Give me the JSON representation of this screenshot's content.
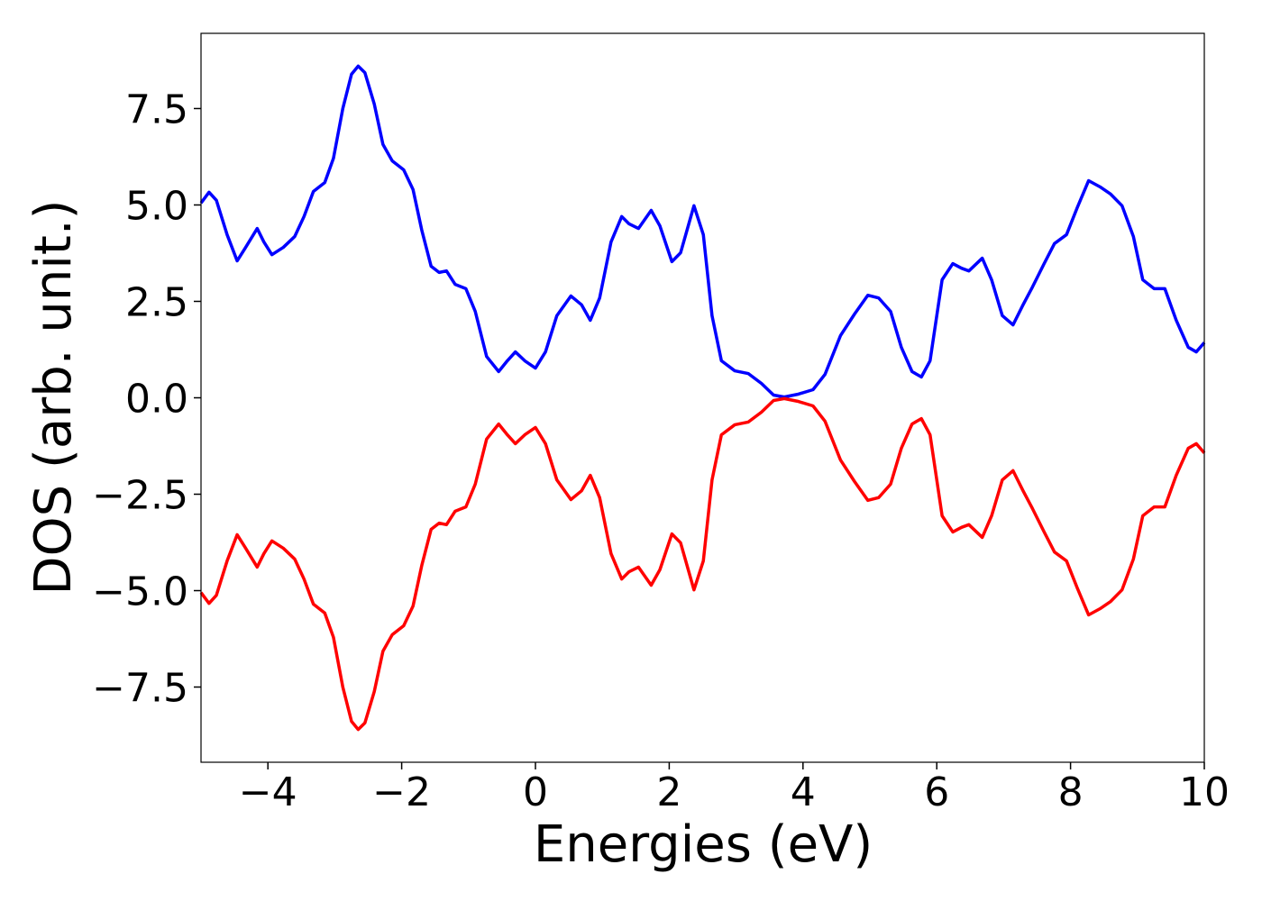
{
  "chart_data": {
    "type": "line",
    "x_label": "Energies (eV)",
    "y_label": "DOS (arb. unit.)",
    "x": [
      -5,
      -4.88,
      -4.77,
      -4.61,
      -4.46,
      -4.34,
      -4.16,
      -4.06,
      -3.94,
      -3.77,
      -3.6,
      -3.46,
      -3.32,
      -3.15,
      -3.02,
      -2.88,
      -2.75,
      -2.65,
      -2.55,
      -2.41,
      -2.28,
      -2.14,
      -1.97,
      -1.83,
      -1.7,
      -1.56,
      -1.44,
      -1.33,
      -1.2,
      -1.04,
      -0.9,
      -0.73,
      -0.55,
      -0.42,
      -0.3,
      -0.16,
      0,
      0.15,
      0.32,
      0.53,
      0.69,
      0.82,
      0.96,
      1.13,
      1.29,
      1.4,
      1.54,
      1.73,
      1.86,
      2.04,
      2.17,
      2.37,
      2.51,
      2.64,
      2.78,
      2.98,
      3.18,
      3.38,
      3.56,
      3.72,
      3.92,
      4.15,
      4.33,
      4.56,
      4.77,
      4.97,
      5.13,
      5.31,
      5.47,
      5.63,
      5.77,
      5.9,
      6.08,
      6.24,
      6.37,
      6.48,
      6.68,
      6.82,
      6.98,
      7.14,
      7.29,
      7.43,
      7.6,
      7.76,
      7.94,
      8.1,
      8.27,
      8.44,
      8.6,
      8.77,
      8.94,
      9.08,
      9.25,
      9.41,
      9.58,
      9.76,
      9.88,
      10
    ],
    "series": [
      {
        "color": "#0000ff",
        "values": [
          5.05,
          5.33,
          5.12,
          4.23,
          3.55,
          3.88,
          4.39,
          4.04,
          3.71,
          3.9,
          4.18,
          4.7,
          5.35,
          5.58,
          6.21,
          7.5,
          8.39,
          8.6,
          8.43,
          7.62,
          6.57,
          6.14,
          5.91,
          5.4,
          4.35,
          3.41,
          3.25,
          3.29,
          2.94,
          2.83,
          2.24,
          1.07,
          0.68,
          0.96,
          1.19,
          0.96,
          0.77,
          1.19,
          2.13,
          2.64,
          2.41,
          2.01,
          2.59,
          4.04,
          4.7,
          4.51,
          4.39,
          4.86,
          4.46,
          3.53,
          3.76,
          4.98,
          4.23,
          2.13,
          0.96,
          0.7,
          0.63,
          0.37,
          0.07,
          0.02,
          0.09,
          0.21,
          0.61,
          1.61,
          2.17,
          2.66,
          2.59,
          2.24,
          1.31,
          0.68,
          0.54,
          0.96,
          3.06,
          3.48,
          3.36,
          3.29,
          3.62,
          3.06,
          2.13,
          1.89,
          2.41,
          2.87,
          3.46,
          4.0,
          4.23,
          4.93,
          5.63,
          5.47,
          5.28,
          4.98,
          4.18,
          3.06,
          2.83,
          2.83,
          2.01,
          1.31,
          1.19,
          1.43
        ]
      },
      {
        "color": "#ff0000",
        "values": [
          -5.05,
          -5.33,
          -5.12,
          -4.23,
          -3.55,
          -3.88,
          -4.39,
          -4.04,
          -3.71,
          -3.9,
          -4.18,
          -4.7,
          -5.35,
          -5.58,
          -6.21,
          -7.5,
          -8.39,
          -8.6,
          -8.43,
          -7.62,
          -6.57,
          -6.14,
          -5.91,
          -5.4,
          -4.35,
          -3.41,
          -3.25,
          -3.29,
          -2.94,
          -2.83,
          -2.24,
          -1.07,
          -0.68,
          -0.96,
          -1.19,
          -0.96,
          -0.77,
          -1.19,
          -2.13,
          -2.64,
          -2.41,
          -2.01,
          -2.59,
          -4.04,
          -4.7,
          -4.51,
          -4.39,
          -4.86,
          -4.46,
          -3.53,
          -3.76,
          -4.98,
          -4.23,
          -2.13,
          -0.96,
          -0.7,
          -0.63,
          -0.37,
          -0.07,
          -0.02,
          -0.09,
          -0.21,
          -0.61,
          -1.61,
          -2.17,
          -2.66,
          -2.59,
          -2.24,
          -1.31,
          -0.68,
          -0.54,
          -0.96,
          -3.06,
          -3.48,
          -3.36,
          -3.29,
          -3.62,
          -3.06,
          -2.13,
          -1.89,
          -2.41,
          -2.87,
          -3.46,
          -4.0,
          -4.23,
          -4.93,
          -5.63,
          -5.47,
          -5.28,
          -4.98,
          -4.18,
          -3.06,
          -2.83,
          -2.83,
          -2.01,
          -1.31,
          -1.19,
          -1.43
        ]
      }
    ],
    "xlim": [
      -5,
      10
    ],
    "xticks": [
      {
        "value": -4,
        "label": "−4"
      },
      {
        "value": -2,
        "label": "−2"
      },
      0,
      2,
      4,
      6,
      8,
      10
    ],
    "ylim": [
      -9.45,
      9.45
    ],
    "yticks": [
      {
        "value": -7.5,
        "label": "−7.5"
      },
      {
        "value": -5,
        "label": "−5.0"
      },
      {
        "value": -2.5,
        "label": "−2.5"
      },
      {
        "value": 0,
        "label": "0.0"
      },
      2.5,
      {
        "value": 5,
        "label": "5.0"
      },
      7.5
    ],
    "grid": false
  }
}
